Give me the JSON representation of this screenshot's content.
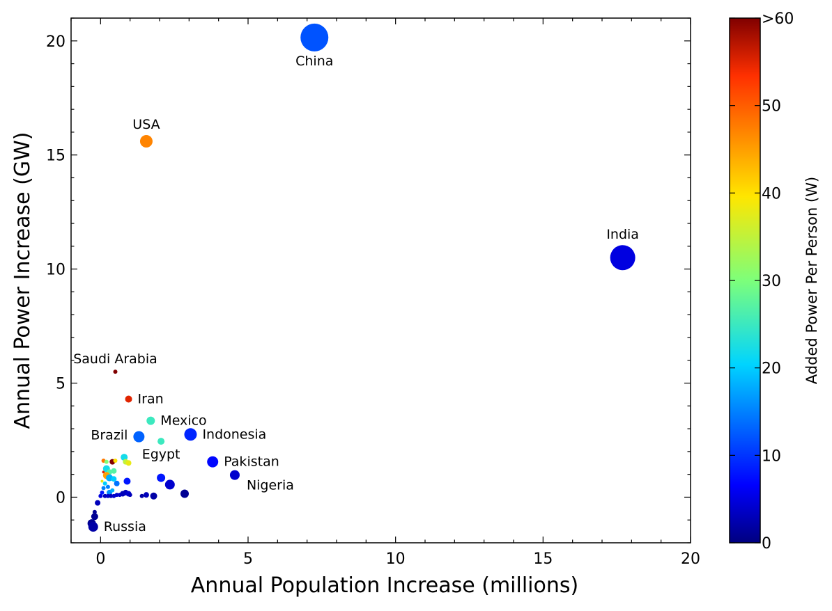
{
  "chart_data": {
    "type": "scatter",
    "xlabel": "Annual Population Increase (millions)",
    "ylabel": "Annual Power Increase (GW)",
    "xlim": [
      -1,
      20
    ],
    "ylim": [
      -2,
      21
    ],
    "xticks": [
      0,
      5,
      10,
      15,
      20
    ],
    "yticks": [
      0,
      5,
      10,
      15,
      20
    ],
    "grid": false,
    "colorbar": {
      "label": "Added Power Per Person (W)",
      "range": [
        0,
        60
      ],
      "ticks": [
        {
          "value": 0,
          "label": "0"
        },
        {
          "value": 10,
          "label": "10"
        },
        {
          "value": 20,
          "label": "20"
        },
        {
          "value": 30,
          "label": "30"
        },
        {
          "value": 40,
          "label": "40"
        },
        {
          "value": 50,
          "label": "50"
        },
        {
          "value": 60,
          "label": ">60"
        }
      ],
      "colormap": "jet"
    },
    "labeled_points": [
      {
        "label": "China",
        "x": 7.25,
        "y": 20.15,
        "color_value": 12,
        "size": 20,
        "label_pos": "below"
      },
      {
        "label": "India",
        "x": 17.7,
        "y": 10.5,
        "color_value": 5,
        "size": 18,
        "label_pos": "above"
      },
      {
        "label": "USA",
        "x": 1.55,
        "y": 15.6,
        "color_value": 47,
        "size": 9,
        "label_pos": "above"
      },
      {
        "label": "Saudi Arabia",
        "x": 0.5,
        "y": 5.5,
        "color_value": 62,
        "size": 3,
        "label_pos": "above"
      },
      {
        "label": "Iran",
        "x": 0.95,
        "y": 4.3,
        "color_value": 55,
        "size": 5,
        "label_pos": "right"
      },
      {
        "label": "Mexico",
        "x": 1.7,
        "y": 3.35,
        "color_value": 25,
        "size": 6,
        "label_pos": "right"
      },
      {
        "label": "Indonesia",
        "x": 3.05,
        "y": 2.75,
        "color_value": 9,
        "size": 9,
        "label_pos": "right"
      },
      {
        "label": "Brazil",
        "x": 1.3,
        "y": 2.65,
        "color_value": 13,
        "size": 8,
        "label_pos": "left"
      },
      {
        "label": "Egypt",
        "x": 2.05,
        "y": 2.45,
        "color_value": 25,
        "size": 5,
        "label_pos": "below"
      },
      {
        "label": "Pakistan",
        "x": 3.8,
        "y": 1.55,
        "color_value": 7,
        "size": 8,
        "label_pos": "right"
      },
      {
        "label": "Nigeria",
        "x": 4.55,
        "y": 0.97,
        "color_value": 4,
        "size": 7,
        "label_pos": "below-right"
      },
      {
        "label": "Russia",
        "x": -0.25,
        "y": -1.3,
        "color_value": 2,
        "size": 7,
        "label_pos": "right"
      }
    ],
    "points": [
      {
        "x": -0.3,
        "y": -1.15,
        "color_value": 1,
        "size": 6
      },
      {
        "x": -0.2,
        "y": -0.85,
        "color_value": 1,
        "size": 5
      },
      {
        "x": -0.2,
        "y": -0.65,
        "color_value": 1,
        "size": 3
      },
      {
        "x": -0.1,
        "y": -0.25,
        "color_value": 3,
        "size": 4
      },
      {
        "x": 0.0,
        "y": 0.05,
        "color_value": 5,
        "size": 3
      },
      {
        "x": 0.05,
        "y": 0.2,
        "color_value": 8,
        "size": 3
      },
      {
        "x": 0.1,
        "y": 0.4,
        "color_value": 15,
        "size": 3
      },
      {
        "x": 0.05,
        "y": 0.7,
        "color_value": 38,
        "size": 2
      },
      {
        "x": 0.1,
        "y": 1.1,
        "color_value": 55,
        "size": 2
      },
      {
        "x": 0.1,
        "y": 1.6,
        "color_value": 48,
        "size": 3
      },
      {
        "x": 0.2,
        "y": 1.55,
        "color_value": 30,
        "size": 3
      },
      {
        "x": 0.2,
        "y": 1.25,
        "color_value": 22,
        "size": 5
      },
      {
        "x": 0.3,
        "y": 1.1,
        "color_value": 27,
        "size": 4
      },
      {
        "x": 0.4,
        "y": 1.55,
        "color_value": 60,
        "size": 4
      },
      {
        "x": 0.5,
        "y": 1.6,
        "color_value": 40,
        "size": 3
      },
      {
        "x": 0.45,
        "y": 1.15,
        "color_value": 27,
        "size": 4
      },
      {
        "x": 0.2,
        "y": 0.95,
        "color_value": 45,
        "size": 5
      },
      {
        "x": 0.3,
        "y": 0.85,
        "color_value": 18,
        "size": 5
      },
      {
        "x": 0.15,
        "y": 0.6,
        "color_value": 20,
        "size": 3
      },
      {
        "x": 0.45,
        "y": 0.8,
        "color_value": 20,
        "size": 4
      },
      {
        "x": 0.25,
        "y": 0.45,
        "color_value": 15,
        "size": 3
      },
      {
        "x": 0.3,
        "y": 0.2,
        "color_value": 16,
        "size": 4
      },
      {
        "x": 0.4,
        "y": 0.3,
        "color_value": 18,
        "size": 3
      },
      {
        "x": 0.55,
        "y": 0.6,
        "color_value": 14,
        "size": 4
      },
      {
        "x": 0.8,
        "y": 1.75,
        "color_value": 22,
        "size": 5
      },
      {
        "x": 0.85,
        "y": 1.55,
        "color_value": 35,
        "size": 4
      },
      {
        "x": 0.95,
        "y": 1.5,
        "color_value": 38,
        "size": 4
      },
      {
        "x": 0.9,
        "y": 0.7,
        "color_value": 8,
        "size": 5
      },
      {
        "x": 0.15,
        "y": 0.05,
        "color_value": 3,
        "size": 3
      },
      {
        "x": 0.25,
        "y": 0.05,
        "color_value": 4,
        "size": 3
      },
      {
        "x": 0.35,
        "y": 0.05,
        "color_value": 3,
        "size": 3
      },
      {
        "x": 0.45,
        "y": 0.05,
        "color_value": 4,
        "size": 3
      },
      {
        "x": 0.55,
        "y": 0.1,
        "color_value": 4,
        "size": 3
      },
      {
        "x": 0.65,
        "y": 0.1,
        "color_value": 4,
        "size": 3
      },
      {
        "x": 0.75,
        "y": 0.15,
        "color_value": 3,
        "size": 4
      },
      {
        "x": 0.85,
        "y": 0.2,
        "color_value": 3,
        "size": 4
      },
      {
        "x": 0.95,
        "y": 0.15,
        "color_value": 4,
        "size": 4
      },
      {
        "x": 1.0,
        "y": 0.1,
        "color_value": 3,
        "size": 3
      },
      {
        "x": 1.4,
        "y": 0.05,
        "color_value": 2,
        "size": 3
      },
      {
        "x": 1.55,
        "y": 0.1,
        "color_value": 3,
        "size": 4
      },
      {
        "x": 1.8,
        "y": 0.05,
        "color_value": 2,
        "size": 5
      },
      {
        "x": 2.05,
        "y": 0.85,
        "color_value": 8,
        "size": 6
      },
      {
        "x": 2.35,
        "y": 0.55,
        "color_value": 4,
        "size": 7
      },
      {
        "x": 2.85,
        "y": 0.15,
        "color_value": 1,
        "size": 6
      }
    ]
  }
}
